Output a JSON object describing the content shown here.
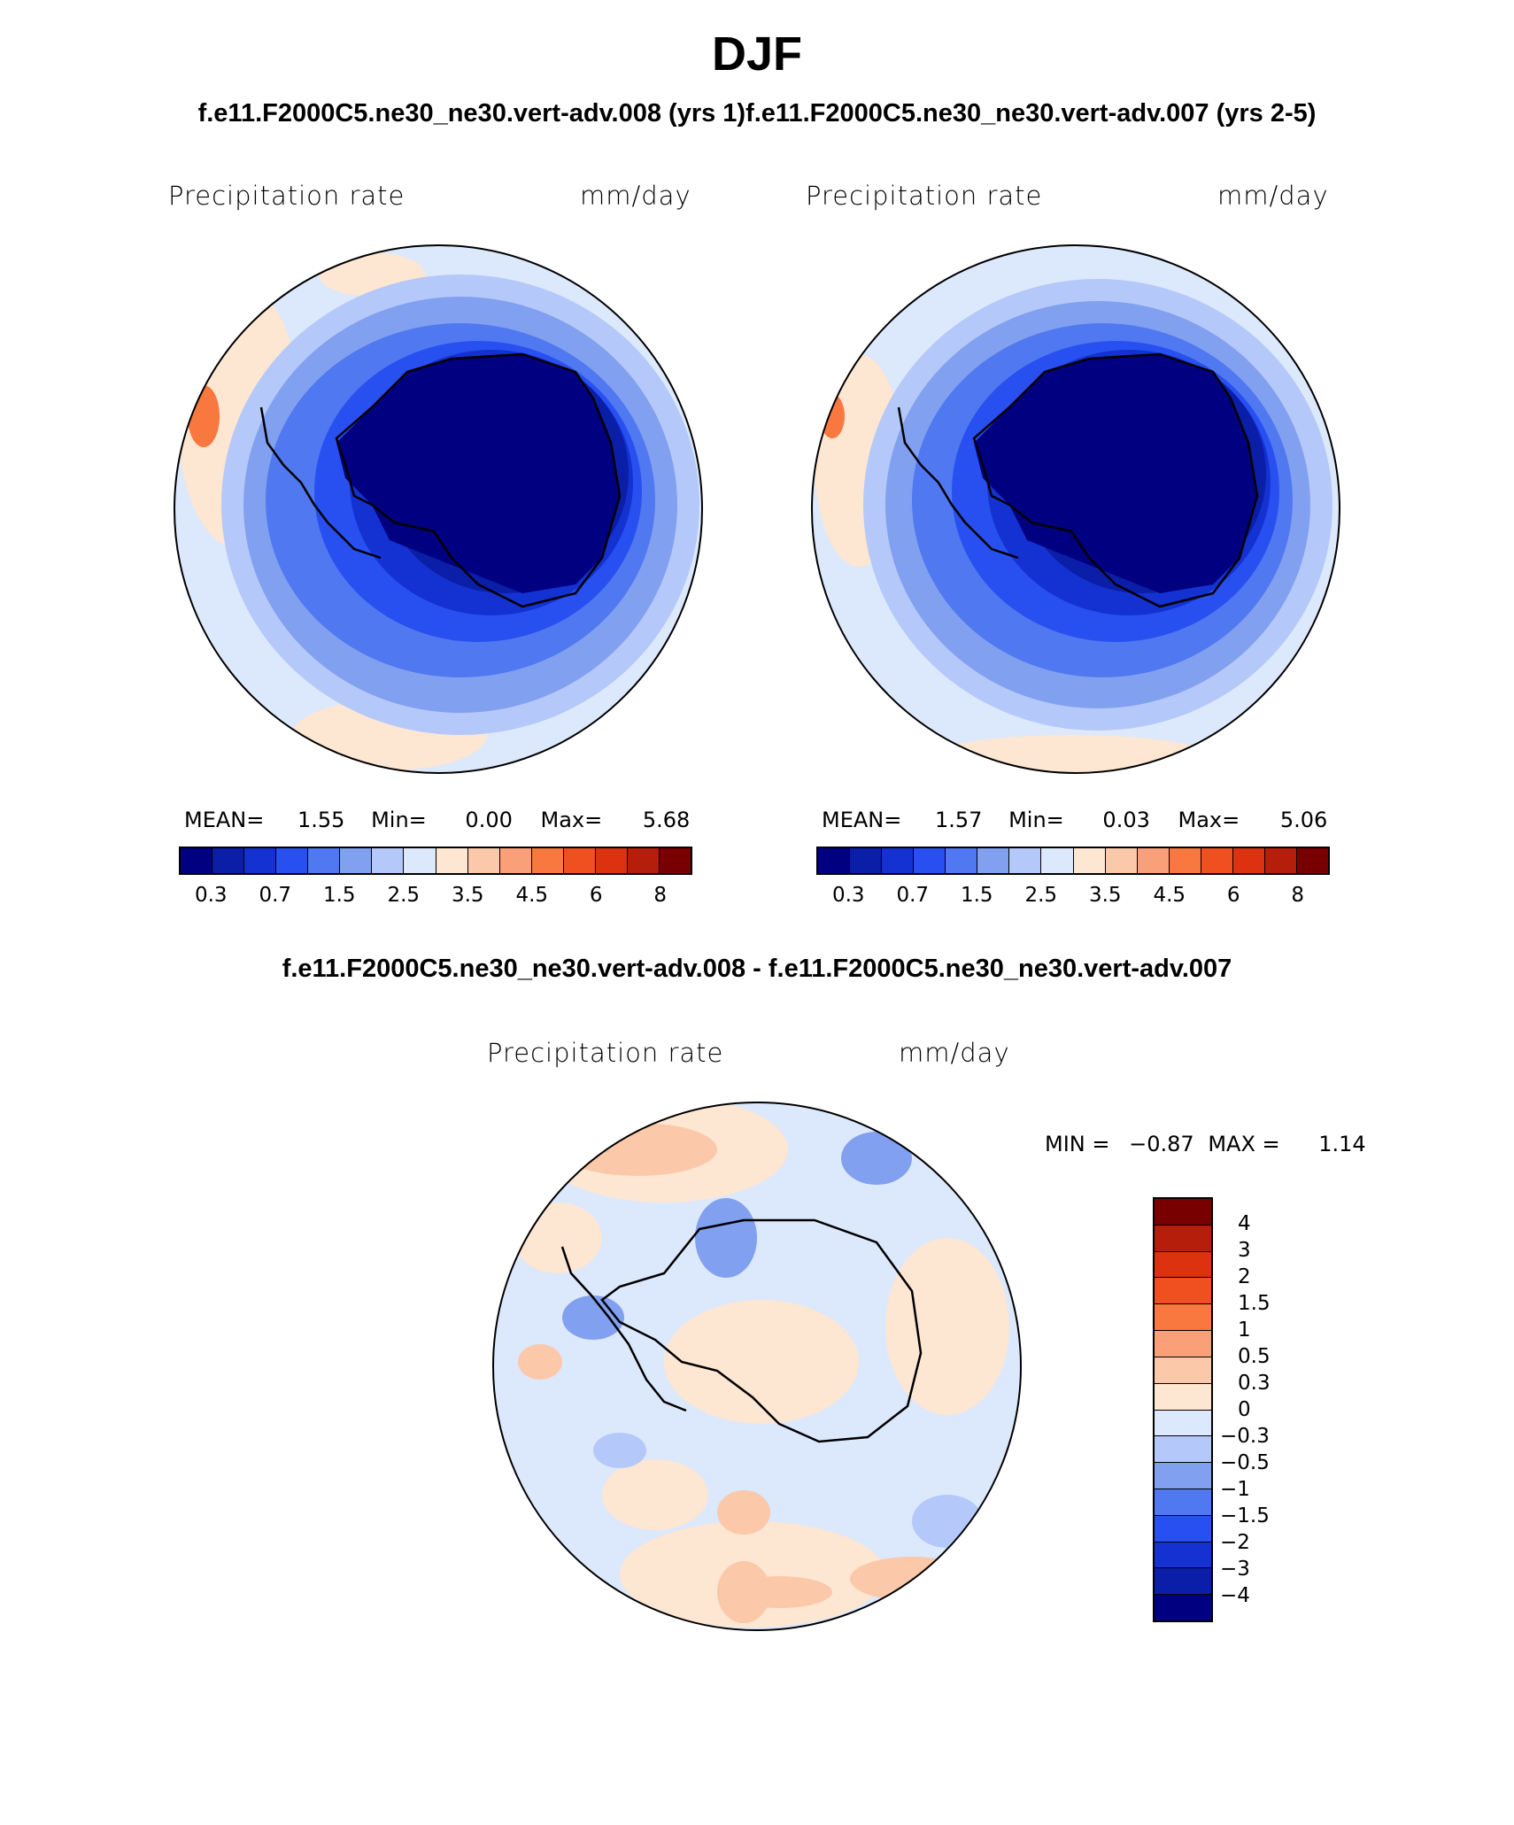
{
  "title": "DJF",
  "case_titles": "f.e11.F2000C5.ne30_ne30.vert-adv.008 (yrs 1)f.e11.F2000C5.ne30_ne30.vert-adv.007 (yrs 2-5)",
  "diff_title": "f.e11.F2000C5.ne30_ne30.vert-adv.008 - f.e11.F2000C5.ne30_ne30.vert-adv.007",
  "panels": [
    {
      "variable": "Precipitation rate",
      "units": "mm/day",
      "mean_label": "MEAN=",
      "mean": "1.55",
      "min_label": "Min=",
      "min": "0.00",
      "max_label": "Max=",
      "max": "5.68"
    },
    {
      "variable": "Precipitation rate",
      "units": "mm/day",
      "mean_label": "MEAN=",
      "mean": "1.57",
      "min_label": "Min=",
      "min": "0.03",
      "max_label": "Max=",
      "max": "5.06"
    }
  ],
  "diff_panel": {
    "variable": "Precipitation rate",
    "units": "mm/day",
    "min_label": "MIN =",
    "min": "−0.87",
    "max_label": "MAX =",
    "max": "1.14"
  },
  "colorbar": {
    "colors": [
      "#000080",
      "#0a1ea8",
      "#1432d2",
      "#2850f0",
      "#5078f0",
      "#82a0f0",
      "#b4c8fa",
      "#dce8fc",
      "#fde6d2",
      "#fcc8aa",
      "#faa078",
      "#f87840",
      "#f05020",
      "#dc3210",
      "#b41e0a",
      "#780000"
    ],
    "ticks": [
      "0.3",
      "0.7",
      "1.5",
      "2.5",
      "3.5",
      "4.5",
      "6",
      "8"
    ]
  },
  "diff_colorbar": {
    "colors": [
      "#780000",
      "#b41e0a",
      "#dc3210",
      "#f05020",
      "#f87840",
      "#faa078",
      "#fcc8aa",
      "#fde6d2",
      "#dce8fc",
      "#b4c8fa",
      "#82a0f0",
      "#5078f0",
      "#2850f0",
      "#1432d2",
      "#0a1ea8",
      "#000080"
    ],
    "ticks": [
      "4",
      "3",
      "2",
      "1.5",
      "1",
      "0.5",
      "0.3",
      "0",
      "−0.3",
      "−0.5",
      "−1",
      "−1.5",
      "−2",
      "−3",
      "−4"
    ]
  }
}
